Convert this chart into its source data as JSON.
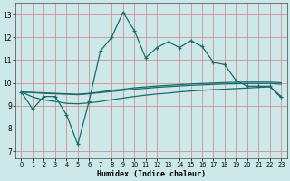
{
  "xlabel": "Humidex (Indice chaleur)",
  "bg_color": "#cce8e8",
  "plot_bg_color": "#cce8e8",
  "grid_color": "#d09090",
  "line_color": "#1a6b6b",
  "x_ticks": [
    0,
    1,
    2,
    3,
    4,
    5,
    6,
    7,
    8,
    9,
    10,
    11,
    12,
    13,
    14,
    15,
    16,
    17,
    18,
    19,
    20,
    21,
    22,
    23
  ],
  "y_ticks": [
    7,
    8,
    9,
    10,
    11,
    12,
    13
  ],
  "ylim": [
    6.7,
    13.5
  ],
  "xlim": [
    -0.5,
    23.5
  ],
  "humidex": [
    9.6,
    8.85,
    9.4,
    9.4,
    8.6,
    7.3,
    9.2,
    11.4,
    12.0,
    13.1,
    12.3,
    11.1,
    11.55,
    11.8,
    11.55,
    11.85,
    11.6,
    10.9,
    10.8,
    10.1,
    9.85,
    9.85,
    9.85,
    9.4
  ],
  "line_upper": [
    9.6,
    9.58,
    9.56,
    9.54,
    9.52,
    9.5,
    9.54,
    9.6,
    9.67,
    9.72,
    9.78,
    9.82,
    9.86,
    9.89,
    9.92,
    9.95,
    9.97,
    9.99,
    10.01,
    10.02,
    10.03,
    10.03,
    10.03,
    10.0
  ],
  "line_mid": [
    9.6,
    9.57,
    9.54,
    9.52,
    9.5,
    9.48,
    9.52,
    9.57,
    9.62,
    9.67,
    9.72,
    9.76,
    9.8,
    9.83,
    9.86,
    9.89,
    9.91,
    9.93,
    9.95,
    9.96,
    9.97,
    9.97,
    9.97,
    9.94
  ],
  "line_lower": [
    9.6,
    9.38,
    9.25,
    9.18,
    9.1,
    9.08,
    9.12,
    9.18,
    9.26,
    9.33,
    9.4,
    9.46,
    9.51,
    9.55,
    9.6,
    9.64,
    9.67,
    9.7,
    9.72,
    9.75,
    9.77,
    9.8,
    9.82,
    9.35
  ]
}
